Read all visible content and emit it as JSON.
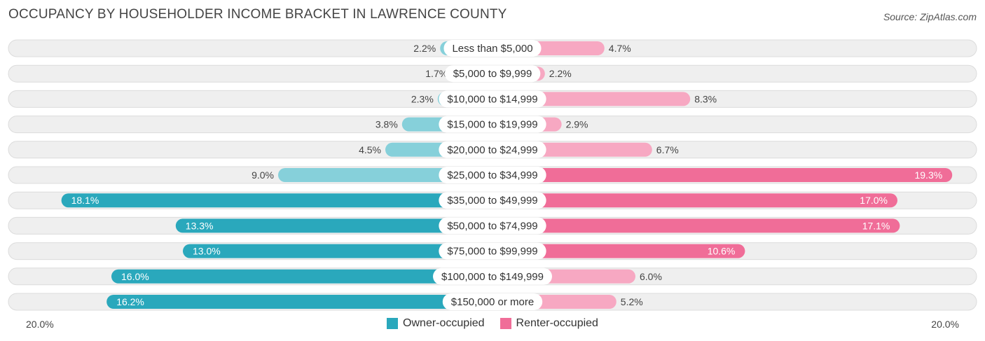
{
  "title": "OCCUPANCY BY HOUSEHOLDER INCOME BRACKET IN LAWRENCE COUNTY",
  "source": "Source: ZipAtlas.com",
  "colors": {
    "owner_dark": "#2aa8bc",
    "owner_light": "#86d0da",
    "renter_dark": "#f06d98",
    "renter_light": "#f7a8c2"
  },
  "chart_data": {
    "type": "bar",
    "orientation": "diverging-horizontal",
    "categories": [
      "Less than $5,000",
      "$5,000 to $9,999",
      "$10,000 to $14,999",
      "$15,000 to $19,999",
      "$20,000 to $24,999",
      "$25,000 to $34,999",
      "$35,000 to $49,999",
      "$50,000 to $74,999",
      "$75,000 to $99,999",
      "$100,000 to $149,999",
      "$150,000 or more"
    ],
    "series": [
      {
        "name": "Owner-occupied",
        "values": [
          2.2,
          1.7,
          2.3,
          3.8,
          4.5,
          9.0,
          18.1,
          13.3,
          13.0,
          16.0,
          16.2
        ],
        "labels": [
          "2.2%",
          "1.7%",
          "2.3%",
          "3.8%",
          "4.5%",
          "9.0%",
          "18.1%",
          "13.3%",
          "13.0%",
          "16.0%",
          "16.2%"
        ]
      },
      {
        "name": "Renter-occupied",
        "values": [
          4.7,
          2.2,
          8.3,
          2.9,
          6.7,
          19.3,
          17.0,
          17.1,
          10.6,
          6.0,
          5.2
        ],
        "labels": [
          "4.7%",
          "2.2%",
          "8.3%",
          "2.9%",
          "6.7%",
          "19.3%",
          "17.0%",
          "17.1%",
          "10.6%",
          "6.0%",
          "5.2%"
        ]
      }
    ],
    "xlim": [
      -20,
      20
    ],
    "axis_left_label": "20.0%",
    "axis_right_label": "20.0%",
    "legend_position": "bottom-center"
  }
}
